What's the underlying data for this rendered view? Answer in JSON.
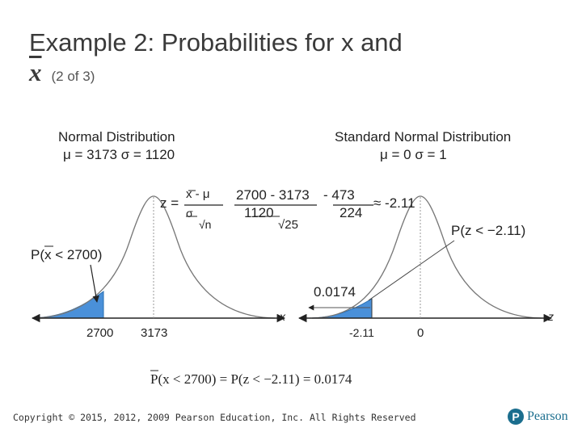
{
  "slide": {
    "title": "Example 2: Probabilities for x and",
    "title_var": "x",
    "title_part": "(2 of 3)"
  },
  "left_panel": {
    "heading": "Normal Distribution",
    "params": "μ = 3173  σ = 1120",
    "prob_label": "P(x < 2700)",
    "tick_left": "2700",
    "tick_mean": "3173",
    "axis_var": "x"
  },
  "right_panel": {
    "heading": "Standard Normal Distribution",
    "params": "μ = 0  σ = 1",
    "prob_label": "P(z < −2.11)",
    "area_value": "0.0174",
    "tick_left": "-2.11",
    "tick_mean": "0",
    "axis_var": "z"
  },
  "formula": {
    "z": "z =",
    "num1": "x - μ",
    "den1": "σ",
    "den1b": "√n",
    "num2": "2700 - 3173",
    "den2": "1120",
    "den2b": "√25",
    "num3": "- 473",
    "den3": "224",
    "approx": "≈ -2.11"
  },
  "result": "P(x < 2700) = P(z < −2.11) = 0.0174",
  "footer": "Copyright © 2015, 2012, 2009 Pearson Education, Inc. All Rights Reserved",
  "logo": "Pearson",
  "colors": {
    "shade": "#4a90d9",
    "text": "#3a3a3a",
    "brand": "#1b6e8e"
  }
}
